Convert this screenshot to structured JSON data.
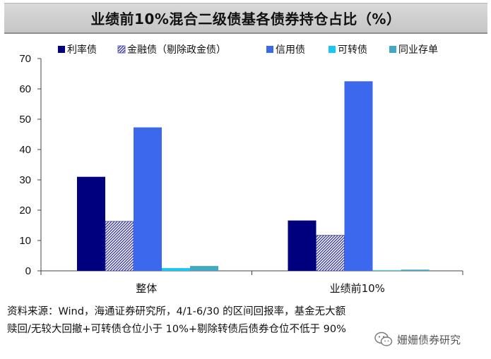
{
  "header": {
    "title": "业绩前10%混合二级债基各债券持仓占比（%）"
  },
  "chart_data": {
    "type": "bar",
    "title": "业绩前10%混合二级债基各债券持仓占比（%）",
    "categories": [
      "整体",
      "业绩前10%"
    ],
    "series": [
      {
        "name": "利率债",
        "values": [
          31.0,
          16.6
        ],
        "color": "#00007e",
        "pattern": "solid"
      },
      {
        "name": "金融债（剔除政金债）",
        "values": [
          16.3,
          11.7
        ],
        "color": "#3a3aa6",
        "pattern": "hatch"
      },
      {
        "name": "信用债",
        "values": [
          47.3,
          62.5
        ],
        "color": "#3b68ec",
        "pattern": "solid"
      },
      {
        "name": "可转债",
        "values": [
          0.9,
          0.1
        ],
        "color": "#19c8f2",
        "pattern": "solid"
      },
      {
        "name": "同业存单",
        "values": [
          1.6,
          0.4
        ],
        "color": "#41a9c6",
        "pattern": "solid"
      }
    ],
    "y_ticks": [
      0,
      10,
      20,
      30,
      40,
      50,
      60,
      70
    ],
    "ylim": [
      0,
      70
    ],
    "xlabel": "",
    "ylabel": "",
    "legend_position": "top"
  },
  "note": {
    "line1": "资料来源：Wind，海通证券研究所，4/1-6/30 的区间回报率，基金无大额",
    "line2": "赎回/无较大回撤+可转债仓位小于 10%+剔除转债后债券仓位不低于 90%"
  },
  "watermark": {
    "text": "姗姗债券研究",
    "icon": "wechat-icon"
  }
}
